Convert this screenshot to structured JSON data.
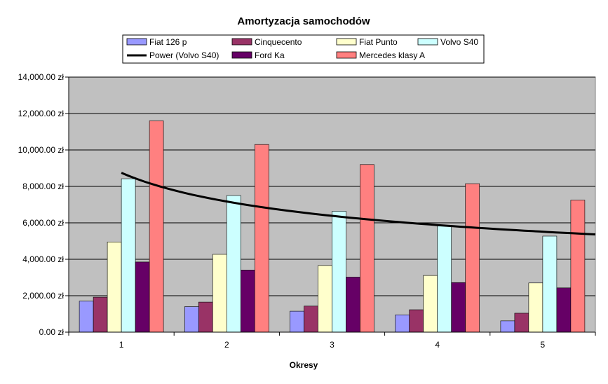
{
  "chart_data": {
    "type": "bar",
    "title": "Amortyzacja samochodów",
    "xlabel": "Okresy",
    "ylabel": "",
    "ylim": [
      0,
      14000
    ],
    "y_ticks": [
      "0.00 zł",
      "2,000.00 zł",
      "4,000.00 zł",
      "6,000.00 zł",
      "8,000.00 zł",
      "10,000.00 zł",
      "12,000.00 zł",
      "14,000.00 zł"
    ],
    "categories": [
      "1",
      "2",
      "3",
      "4",
      "5"
    ],
    "series": [
      {
        "name": "Fiat 126 p",
        "color": "#9999ff",
        "values": [
          1700,
          1400,
          1150,
          950,
          620
        ]
      },
      {
        "name": "Cinquecento",
        "color": "#993366",
        "values": [
          1920,
          1650,
          1430,
          1230,
          1040
        ]
      },
      {
        "name": "Fiat Punto",
        "color": "#ffffcc",
        "values": [
          4950,
          4270,
          3660,
          3110,
          2700
        ]
      },
      {
        "name": "Volvo S40",
        "color": "#ccffff",
        "values": [
          8420,
          7500,
          6640,
          5870,
          5270
        ]
      },
      {
        "name": "Ford Ka",
        "color": "#660066",
        "values": [
          3850,
          3410,
          3020,
          2720,
          2430
        ]
      },
      {
        "name": "Mercedes klasy A",
        "color": "#ff8080",
        "values": [
          11600,
          10300,
          9200,
          8150,
          7250
        ]
      }
    ],
    "trendline": {
      "name": "Power (Volvo S40)",
      "type": "power",
      "of_series": "Volvo S40",
      "color": "#000000"
    },
    "plot_background": "#c0c0c0",
    "grid": true,
    "legend_position": "top"
  }
}
